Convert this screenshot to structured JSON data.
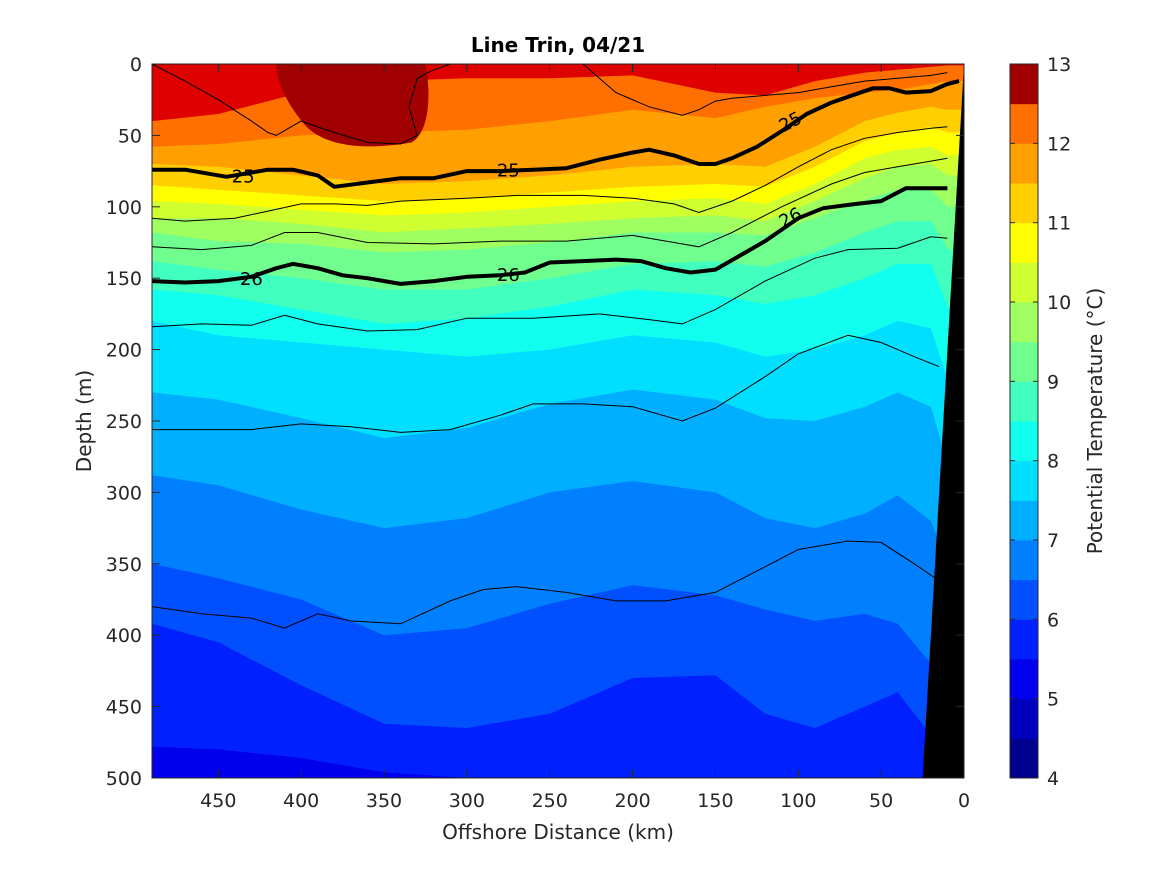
{
  "chart_data": {
    "type": "contour",
    "title": "Line Trin, 04/21",
    "xlabel": "Offshore Distance (km)",
    "ylabel": "Depth (m)",
    "xlim": [
      490,
      0
    ],
    "x_reversed": true,
    "ylim": [
      0,
      500
    ],
    "y_reversed": true,
    "xticks": [
      "450",
      "400",
      "350",
      "300",
      "250",
      "200",
      "150",
      "100",
      "50",
      "0"
    ],
    "yticks": [
      "0",
      "50",
      "100",
      "150",
      "200",
      "250",
      "300",
      "350",
      "400",
      "450",
      "500"
    ],
    "colorbar": {
      "label": "Potential Temperature (°C)",
      "ticks": [
        "4",
        "5",
        "6",
        "7",
        "8",
        "9",
        "10",
        "11",
        "12",
        "13"
      ],
      "range": [
        4,
        13
      ],
      "step": 0.5,
      "colors": [
        "#00008f",
        "#0000bf",
        "#0000ef",
        "#0020ff",
        "#0050ff",
        "#0080ff",
        "#00afff",
        "#00dfff",
        "#10ffef",
        "#40ffbf",
        "#70ff8f",
        "#9fff60",
        "#cfff30",
        "#ffff00",
        "#ffcf00",
        "#ff9f00",
        "#ff7000",
        "#ff4000",
        "#ff1000",
        "#df0000"
      ],
      "top_color": "#a00000"
    },
    "isotherms_c": [
      {
        "value": 5.5,
        "depth": [
          478,
          480,
          486,
          496,
          500,
          500,
          500,
          500,
          500,
          500,
          500,
          500,
          500,
          500
        ]
      },
      {
        "value": 6.0,
        "depth": [
          392,
          405,
          435,
          462,
          465,
          455,
          430,
          428,
          455,
          465,
          450,
          440,
          470,
          500
        ]
      },
      {
        "value": 6.5,
        "depth": [
          350,
          360,
          375,
          400,
          395,
          378,
          365,
          372,
          382,
          390,
          385,
          392,
          420,
          470
        ]
      },
      {
        "value": 7.0,
        "depth": [
          288,
          295,
          312,
          325,
          318,
          300,
          292,
          300,
          318,
          325,
          315,
          302,
          320,
          350
        ]
      },
      {
        "value": 7.5,
        "depth": [
          230,
          235,
          248,
          262,
          255,
          238,
          228,
          235,
          248,
          250,
          240,
          230,
          240,
          280
        ]
      },
      {
        "value": 8.0,
        "depth": [
          180,
          190,
          195,
          200,
          205,
          200,
          190,
          195,
          205,
          200,
          190,
          180,
          185,
          220
        ]
      },
      {
        "value": 8.5,
        "depth": [
          158,
          162,
          172,
          182,
          178,
          170,
          158,
          162,
          168,
          162,
          150,
          140,
          140,
          170
        ]
      },
      {
        "value": 9.0,
        "depth": [
          138,
          144,
          150,
          158,
          158,
          150,
          140,
          138,
          142,
          132,
          118,
          110,
          110,
          130
        ]
      },
      {
        "value": 9.5,
        "depth": [
          118,
          124,
          126,
          132,
          130,
          125,
          118,
          118,
          120,
          108,
          95,
          88,
          88,
          100
        ]
      },
      {
        "value": 10.0,
        "depth": [
          108,
          108,
          112,
          118,
          115,
          112,
          108,
          106,
          110,
          96,
          80,
          72,
          70,
          78
        ]
      },
      {
        "value": 10.5,
        "depth": [
          96,
          98,
          102,
          106,
          104,
          100,
          96,
          94,
          98,
          84,
          66,
          60,
          58,
          64
        ]
      },
      {
        "value": 11.0,
        "depth": [
          85,
          88,
          92,
          96,
          94,
          90,
          86,
          84,
          86,
          72,
          54,
          48,
          44,
          48
        ]
      },
      {
        "value": 11.5,
        "depth": [
          70,
          72,
          78,
          84,
          82,
          78,
          72,
          70,
          72,
          58,
          40,
          34,
          30,
          32
        ]
      },
      {
        "value": 12.0,
        "depth": [
          58,
          56,
          50,
          48,
          46,
          40,
          32,
          38,
          30,
          24,
          20,
          18,
          14,
          12
        ]
      },
      {
        "value": 12.5,
        "depth": [
          40,
          35,
          20,
          12,
          10,
          10,
          8,
          20,
          22,
          12,
          6,
          4,
          2,
          1
        ]
      }
    ],
    "isotherm_x_km": [
      490,
      450,
      400,
      350,
      300,
      250,
      200,
      150,
      120,
      90,
      60,
      40,
      20,
      10
    ],
    "hot_core_13c": {
      "x_range_km": [
        415,
        325
      ],
      "depth_range_m": [
        0,
        55
      ]
    },
    "density_contours": [
      {
        "label": "25",
        "bold": true,
        "x": [
          490,
          470,
          445,
          420,
          405,
          390,
          380,
          360,
          340,
          320,
          300,
          280,
          260,
          240,
          220,
          200,
          190,
          175,
          160,
          150,
          140,
          125,
          110,
          95,
          80,
          70,
          55,
          45,
          35,
          20,
          10,
          3
        ],
        "depth": [
          74,
          74,
          79,
          74,
          74,
          78,
          86,
          83,
          80,
          80,
          75,
          75,
          74,
          73,
          67,
          62,
          60,
          64,
          70,
          70,
          66,
          58,
          47,
          35,
          27,
          23,
          17,
          17,
          20,
          19,
          14,
          12
        ]
      },
      {
        "label": "26",
        "bold": true,
        "x": [
          490,
          470,
          450,
          430,
          415,
          405,
          390,
          375,
          360,
          340,
          320,
          300,
          280,
          265,
          250,
          230,
          210,
          195,
          180,
          165,
          150,
          135,
          120,
          100,
          85,
          65,
          50,
          35,
          20,
          10
        ],
        "depth": [
          152,
          153,
          152,
          149,
          143,
          140,
          143,
          148,
          150,
          154,
          152,
          149,
          148,
          146,
          139,
          138,
          137,
          138,
          143,
          146,
          144,
          134,
          124,
          108,
          101,
          98,
          96,
          87,
          87,
          87
        ]
      }
    ],
    "density_contour_labels": [
      {
        "text": "25",
        "x": 435,
        "depth": 78,
        "angle": 0
      },
      {
        "text": "25",
        "x": 275,
        "depth": 74,
        "angle": 0
      },
      {
        "text": "25",
        "x": 105,
        "depth": 40,
        "angle": -28
      },
      {
        "text": "26",
        "x": 430,
        "depth": 150,
        "angle": 0
      },
      {
        "text": "26",
        "x": 275,
        "depth": 147,
        "angle": 0
      },
      {
        "text": "26",
        "x": 105,
        "depth": 107,
        "angle": -28
      }
    ],
    "thin_contours": [
      {
        "x": [
          490,
          470,
          440,
          420,
          400,
          380,
          360,
          340,
          300,
          270,
          230,
          200,
          175,
          160,
          140,
          120,
          100,
          80,
          60,
          40,
          20,
          10
        ],
        "depth": [
          108,
          110,
          108,
          103,
          98,
          98,
          99,
          96,
          94,
          92,
          92,
          94,
          98,
          104,
          96,
          85,
          72,
          60,
          52,
          48,
          45,
          44
        ]
      },
      {
        "x": [
          490,
          460,
          430,
          410,
          390,
          360,
          320,
          280,
          240,
          200,
          175,
          160,
          140,
          110,
          80,
          60,
          40,
          20,
          10
        ],
        "depth": [
          128,
          130,
          127,
          118,
          118,
          125,
          126,
          124,
          124,
          120,
          125,
          128,
          118,
          100,
          84,
          76,
          72,
          68,
          66
        ]
      },
      {
        "x": [
          490,
          460,
          430,
          410,
          390,
          360,
          330,
          300,
          260,
          220,
          190,
          170,
          150,
          120,
          90,
          70,
          40,
          20,
          10
        ],
        "depth": [
          184,
          182,
          183,
          176,
          182,
          187,
          186,
          178,
          178,
          175,
          179,
          182,
          172,
          152,
          136,
          130,
          129,
          121,
          122
        ]
      },
      {
        "x": [
          490,
          460,
          430,
          400,
          370,
          340,
          310,
          280,
          260,
          230,
          200,
          170,
          150,
          120,
          100,
          70,
          50,
          30,
          15
        ],
        "depth": [
          256,
          256,
          256,
          252,
          254,
          258,
          256,
          246,
          238,
          238,
          240,
          250,
          241,
          219,
          203,
          190,
          195,
          205,
          212
        ]
      },
      {
        "x": [
          490,
          460,
          430,
          410,
          390,
          370,
          340,
          310,
          290,
          270,
          240,
          210,
          180,
          150,
          120,
          100,
          70,
          50,
          30,
          15
        ],
        "depth": [
          380,
          385,
          388,
          395,
          385,
          390,
          392,
          376,
          368,
          366,
          370,
          376,
          376,
          370,
          352,
          340,
          334,
          335,
          350,
          362
        ]
      },
      {
        "x": [
          490,
          470,
          450,
          430,
          420,
          415
        ],
        "depth": [
          0,
          12,
          25,
          40,
          48,
          50
        ]
      },
      {
        "x": [
          415,
          400,
          380,
          360,
          340,
          330
        ],
        "depth": [
          50,
          40,
          48,
          55,
          56,
          50
        ]
      },
      {
        "x": [
          330,
          335,
          330,
          320,
          310
        ],
        "depth": [
          50,
          30,
          10,
          4,
          0
        ]
      },
      {
        "x": [
          230,
          210,
          190,
          170,
          160,
          150,
          140,
          120,
          100,
          80,
          60,
          40,
          20,
          10
        ],
        "depth": [
          0,
          20,
          30,
          36,
          32,
          26,
          24,
          22,
          20,
          16,
          12,
          10,
          8,
          6
        ]
      }
    ],
    "bathymetry": {
      "color": "#000000",
      "bottom_x_km": [
        25,
        0
      ],
      "surface_x_km": 0
    }
  }
}
